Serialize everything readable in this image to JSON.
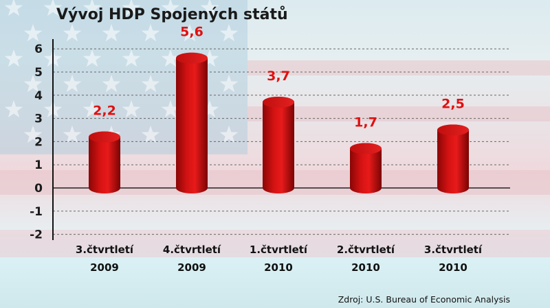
{
  "chart_data": {
    "type": "bar",
    "title": "Vývoj HDP Spojených států",
    "categories": [
      [
        "3.čtvrtletí",
        "2009"
      ],
      [
        "4.čtvrtletí",
        "2009"
      ],
      [
        "1.čtvrtletí",
        "2010"
      ],
      [
        "2.čtvrtletí",
        "2010"
      ],
      [
        "3.čtvrtletí",
        "2010"
      ]
    ],
    "values": [
      2.2,
      5.6,
      3.7,
      1.7,
      2.5
    ],
    "data_labels": [
      "2,2",
      "5,6",
      "3,7",
      "1,7",
      "2,5"
    ],
    "yticks": [
      "6",
      "5",
      "4",
      "3",
      "2",
      "1",
      "0",
      "-1",
      "-2"
    ],
    "ylim": [
      -2,
      6
    ],
    "grid": true,
    "bar_style": "3d cylinder",
    "bar_color": "#d01010",
    "label_color": "#e01010",
    "source": "Zdroj: U.S. Bureau of Economic Analysis",
    "background": "US flag (faded)"
  }
}
